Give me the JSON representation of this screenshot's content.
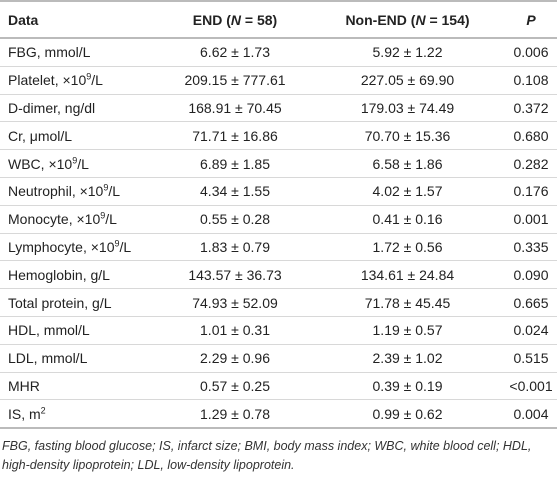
{
  "table": {
    "header": [
      [
        "Data"
      ],
      [
        "END (",
        "N",
        " = 58)"
      ],
      [
        "Non-END (",
        "N",
        " = 154)"
      ],
      [
        "",
        "P",
        ""
      ]
    ],
    "rows": [
      [
        [
          "FBG, mmol/L"
        ],
        "6.62 ± 1.73",
        "5.92 ± 1.22",
        "0.006"
      ],
      [
        [
          "Platelet, ×10",
          "9",
          "/L"
        ],
        "209.15 ± 777.61",
        "227.05 ± 69.90",
        "0.108"
      ],
      [
        [
          "D-dimer, ng/dl"
        ],
        "168.91 ± 70.45",
        "179.03 ± 74.49",
        "0.372"
      ],
      [
        [
          "Cr, μmol/L"
        ],
        "71.71 ± 16.86",
        "70.70 ± 15.36",
        "0.680"
      ],
      [
        [
          "WBC, ×10",
          "9",
          "/L"
        ],
        "6.89 ± 1.85",
        "6.58 ± 1.86",
        "0.282"
      ],
      [
        [
          "Neutrophil, ×10",
          "9",
          "/L"
        ],
        "4.34 ± 1.55",
        "4.02 ± 1.57",
        "0.176"
      ],
      [
        [
          "Monocyte, ×10",
          "9",
          "/L"
        ],
        "0.55 ± 0.28",
        "0.41 ± 0.16",
        "0.001"
      ],
      [
        [
          "Lymphocyte, ×10",
          "9",
          "/L"
        ],
        "1.83 ± 0.79",
        "1.72 ± 0.56",
        "0.335"
      ],
      [
        [
          "Hemoglobin, g/L"
        ],
        "143.57 ± 36.73",
        "134.61 ± 24.84",
        "0.090"
      ],
      [
        [
          "Total protein, g/L"
        ],
        "74.93 ± 52.09",
        "71.78 ± 45.45",
        "0.665"
      ],
      [
        [
          "HDL, mmol/L"
        ],
        "1.01 ± 0.31",
        "1.19 ± 0.57",
        "0.024"
      ],
      [
        [
          "LDL, mmol/L"
        ],
        "2.29 ± 0.96",
        "2.39 ± 1.02",
        "0.515"
      ],
      [
        [
          "MHR"
        ],
        "0.57 ± 0.25",
        "0.39 ± 0.19",
        "<0.001"
      ],
      [
        [
          "IS, m",
          "2"
        ],
        "1.29 ± 0.78",
        "0.99 ± 0.62",
        "0.004"
      ]
    ]
  },
  "footnote": "FBG, fasting blood glucose; IS, infarct size; BMI, body mass index; WBC, white blood cell; HDL, high-density lipoprotein; LDL, low-density lipoprotein."
}
